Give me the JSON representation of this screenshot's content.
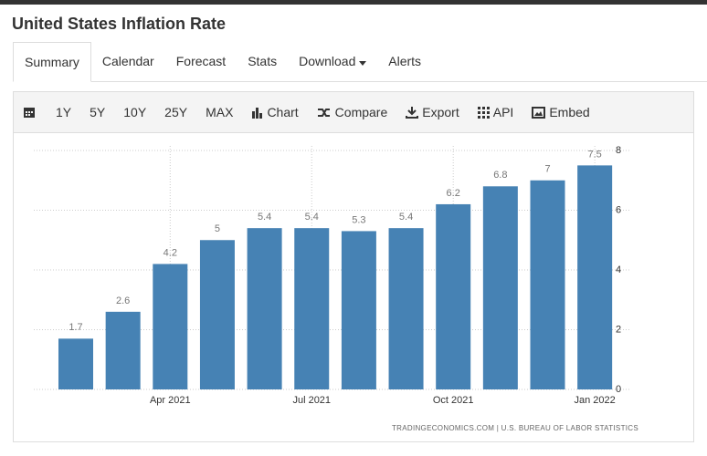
{
  "header": {
    "title": "United States Inflation Rate"
  },
  "tabs": [
    "Summary",
    "Calendar",
    "Forecast",
    "Stats",
    "Download",
    "Alerts"
  ],
  "toolbar": [
    "1Y",
    "5Y",
    "10Y",
    "25Y",
    "MAX",
    "Chart",
    "Compare",
    "Export",
    "API",
    "Embed"
  ],
  "chart_data": {
    "type": "bar",
    "categories": [
      null,
      null,
      "Apr 2021",
      null,
      null,
      "Jul 2021",
      null,
      null,
      "Oct 2021",
      null,
      null,
      "Jan 2022"
    ],
    "values": [
      1.7,
      2.6,
      4.2,
      5,
      5.4,
      5.4,
      5.3,
      5.4,
      6.2,
      6.8,
      7,
      7.5
    ],
    "color": "#4682b4",
    "ylim": [
      0,
      8
    ],
    "yticks": [
      0,
      2,
      4,
      6,
      8
    ],
    "grid": true,
    "source": "TRADINGECONOMICS.COM | U.S. BUREAU OF LABOR STATISTICS"
  }
}
